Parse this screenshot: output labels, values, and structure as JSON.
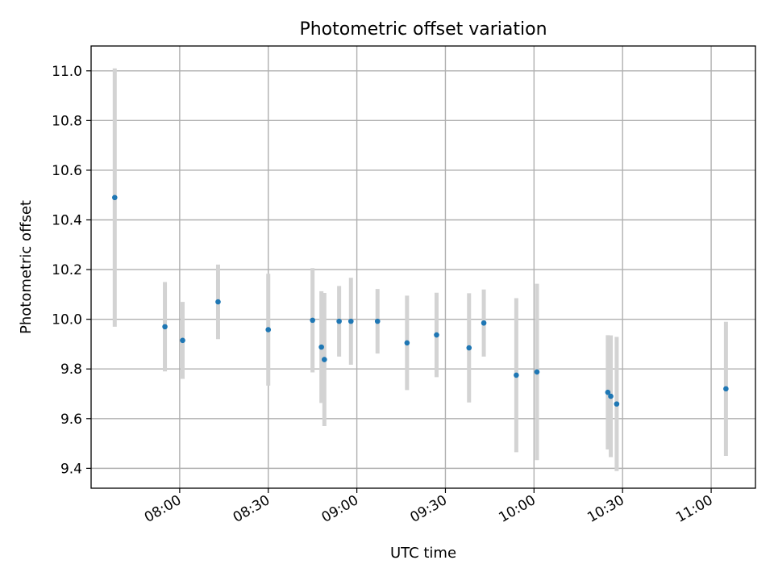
{
  "chart_data": {
    "type": "scatter",
    "title": "Photometric offset variation",
    "xlabel": "UTC time",
    "ylabel": "Photometric offset",
    "x_tick_labels": [
      "08:00",
      "08:30",
      "09:00",
      "09:30",
      "10:00",
      "10:30",
      "11:00"
    ],
    "x_tick_times": [
      "08:00",
      "08:30",
      "09:00",
      "09:30",
      "10:00",
      "10:30",
      "11:00"
    ],
    "y_ticks": [
      9.4,
      9.6,
      9.8,
      10.0,
      10.2,
      10.4,
      10.6,
      10.8,
      11.0
    ],
    "xlim": [
      "07:30",
      "11:15"
    ],
    "ylim": [
      9.32,
      11.1
    ],
    "grid": true,
    "errorbar_color": "#d3d3d3",
    "marker_color": "#1f77b4",
    "points": [
      {
        "t": "07:38",
        "y": 10.49,
        "err": 0.52
      },
      {
        "t": "07:55",
        "y": 9.97,
        "err": 0.18
      },
      {
        "t": "08:01",
        "y": 9.915,
        "err": 0.155
      },
      {
        "t": "08:13",
        "y": 10.07,
        "err": 0.15
      },
      {
        "t": "08:30",
        "y": 9.958,
        "err": 0.225
      },
      {
        "t": "08:45",
        "y": 9.996,
        "err": 0.21
      },
      {
        "t": "08:48",
        "y": 9.888,
        "err": 0.225
      },
      {
        "t": "08:49",
        "y": 9.838,
        "err": 0.268
      },
      {
        "t": "08:54",
        "y": 9.992,
        "err": 0.142
      },
      {
        "t": "08:58",
        "y": 9.992,
        "err": 0.175
      },
      {
        "t": "09:07",
        "y": 9.992,
        "err": 0.13
      },
      {
        "t": "09:17",
        "y": 9.905,
        "err": 0.19
      },
      {
        "t": "09:27",
        "y": 9.937,
        "err": 0.17
      },
      {
        "t": "09:38",
        "y": 9.885,
        "err": 0.22
      },
      {
        "t": "09:43",
        "y": 9.985,
        "err": 0.135
      },
      {
        "t": "09:54",
        "y": 9.775,
        "err": 0.31
      },
      {
        "t": "10:01",
        "y": 9.788,
        "err": 0.355
      },
      {
        "t": "10:25",
        "y": 9.706,
        "err": 0.23
      },
      {
        "t": "10:26",
        "y": 9.69,
        "err": 0.245
      },
      {
        "t": "10:28",
        "y": 9.659,
        "err": 0.27
      },
      {
        "t": "11:05",
        "y": 9.72,
        "err": 0.27
      }
    ]
  }
}
